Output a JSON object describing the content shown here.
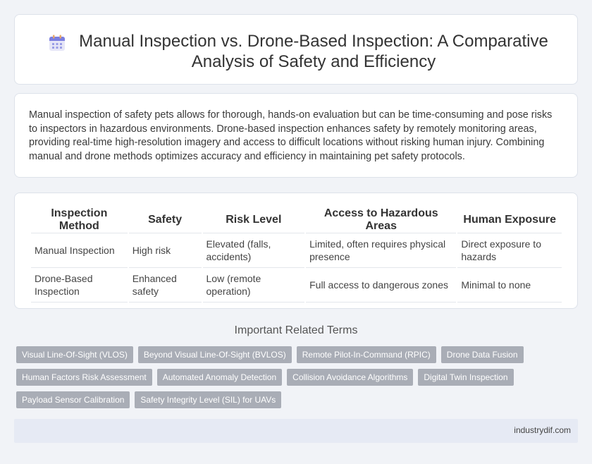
{
  "header": {
    "title": "Manual Inspection vs. Drone-Based Inspection: A Comparative Analysis of Safety and Efficiency",
    "icon": "calendar-icon"
  },
  "intro": {
    "text": "Manual inspection of safety pets allows for thorough, hands-on evaluation but can be time-consuming and pose risks to inspectors in hazardous environments. Drone-based inspection enhances safety by remotely monitoring areas, providing real-time high-resolution imagery and access to difficult locations without risking human injury. Combining manual and drone methods optimizes accuracy and efficiency in maintaining pet safety protocols."
  },
  "table": {
    "headers": [
      "Inspection Method",
      "Safety",
      "Risk Level",
      "Access to Hazardous Areas",
      "Human Exposure"
    ],
    "rows": [
      [
        "Manual Inspection",
        "High risk",
        "Elevated (falls, accidents)",
        "Limited, often requires physical presence",
        "Direct exposure to hazards"
      ],
      [
        "Drone-Based Inspection",
        "Enhanced safety",
        "Low (remote operation)",
        "Full access to dangerous zones",
        "Minimal to none"
      ]
    ]
  },
  "terms": {
    "heading": "Important Related Terms",
    "items": [
      "Visual Line-Of-Sight (VLOS)",
      "Beyond Visual Line-Of-Sight (BVLOS)",
      "Remote Pilot-In-Command (RPIC)",
      "Drone Data Fusion",
      "Human Factors Risk Assessment",
      "Automated Anomaly Detection",
      "Collision Avoidance Algorithms",
      "Digital Twin Inspection",
      "Payload Sensor Calibration",
      "Safety Integrity Level (SIL) for UAVs"
    ]
  },
  "footer": {
    "source": "industrydif.com"
  },
  "colors": {
    "accent": "#7b7fe0",
    "tag_bg": "#a9adb6",
    "footer_bg": "#e6eaf4"
  }
}
